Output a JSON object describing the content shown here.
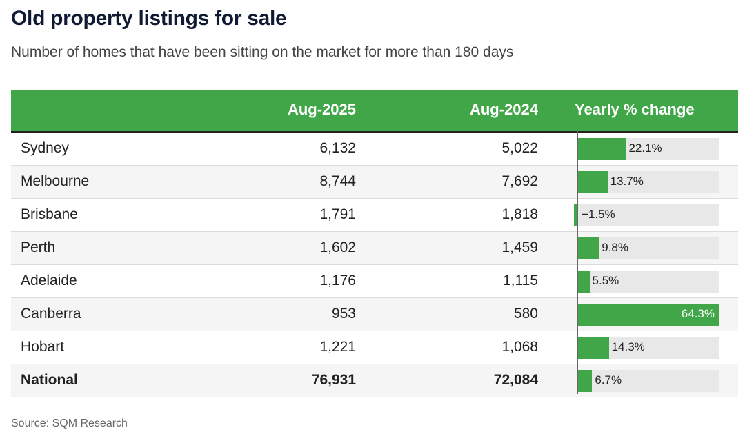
{
  "title": "Old property listings for sale",
  "subtitle": "Number of homes that have been sitting on the market for more than 180 days",
  "source": "Source: SQM Research",
  "colors": {
    "header": "#40a648",
    "bar": "#40a648",
    "bar_bg": "#e8e8e8"
  },
  "chart_data": {
    "type": "table",
    "columns": [
      "",
      "Aug-2025",
      "Aug-2024",
      "Yearly % change"
    ],
    "rows": [
      {
        "name": "Sydney",
        "aug2025": "6,132",
        "aug2024": "5,022",
        "change": 22.1,
        "change_label": "22.1%"
      },
      {
        "name": "Melbourne",
        "aug2025": "8,744",
        "aug2024": "7,692",
        "change": 13.7,
        "change_label": "13.7%"
      },
      {
        "name": "Brisbane",
        "aug2025": "1,791",
        "aug2024": "1,818",
        "change": -1.5,
        "change_label": "−1.5%"
      },
      {
        "name": "Perth",
        "aug2025": "1,602",
        "aug2024": "1,459",
        "change": 9.8,
        "change_label": "9.8%"
      },
      {
        "name": "Adelaide",
        "aug2025": "1,176",
        "aug2024": "1,115",
        "change": 5.5,
        "change_label": "5.5%"
      },
      {
        "name": "Canberra",
        "aug2025": "953",
        "aug2024": "580",
        "change": 64.3,
        "change_label": "64.3%"
      },
      {
        "name": "Hobart",
        "aug2025": "1,221",
        "aug2024": "1,068",
        "change": 14.3,
        "change_label": "14.3%"
      },
      {
        "name": "National",
        "aug2025": "76,931",
        "aug2024": "72,084",
        "change": 6.7,
        "change_label": "6.7%"
      }
    ],
    "bar_range": [
      -5,
      64.3
    ]
  }
}
